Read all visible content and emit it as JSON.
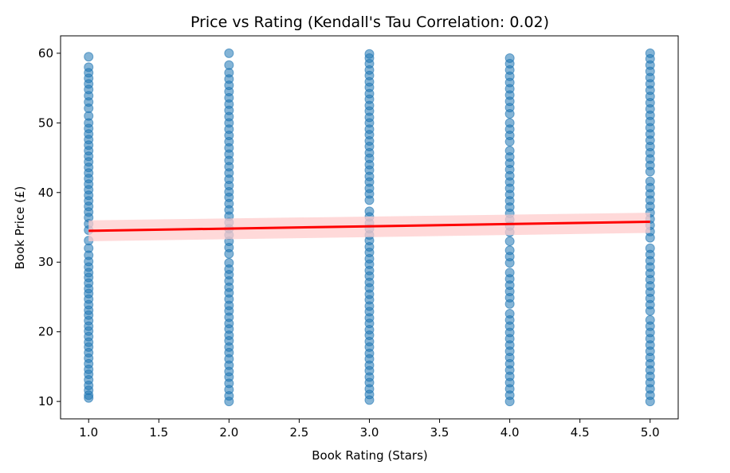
{
  "chart_data": {
    "type": "scatter",
    "title": "Price vs Rating (Kendall's Tau Correlation: 0.02)",
    "xlabel": "Book Rating (Stars)",
    "ylabel": "Book Price (£)",
    "xlim": [
      0.8,
      5.2
    ],
    "ylim": [
      7.5,
      62.5
    ],
    "xticks": [
      1.0,
      1.5,
      2.0,
      2.5,
      3.0,
      3.5,
      4.0,
      4.5,
      5.0
    ],
    "xtick_labels": [
      "1.0",
      "1.5",
      "2.0",
      "2.5",
      "3.0",
      "3.5",
      "4.0",
      "4.5",
      "5.0"
    ],
    "yticks": [
      10,
      20,
      30,
      40,
      50,
      60
    ],
    "ytick_labels": [
      "10",
      "20",
      "30",
      "40",
      "50",
      "60"
    ],
    "grid": false,
    "colors": {
      "points": "#1f77b4",
      "regression_line": "#ff0000",
      "confidence_band": "#ffcccc"
    },
    "regression": {
      "x": [
        1.0,
        5.0
      ],
      "y": [
        34.5,
        35.8
      ],
      "ci_upper": [
        36.0,
        37.1
      ],
      "ci_lower": [
        33.0,
        34.2
      ]
    },
    "series": [
      {
        "x": 1.0,
        "y": [
          10.5,
          10.9,
          11.6,
          12.3,
          13.1,
          13.9,
          14.6,
          15.4,
          16.2,
          17.0,
          17.8,
          18.5,
          19.3,
          20.1,
          20.8,
          21.6,
          22.4,
          23.1,
          23.9,
          24.7,
          25.5,
          26.2,
          27.0,
          27.8,
          28.5,
          29.3,
          30.1,
          31.0,
          32.0,
          33.1,
          34.6,
          35.5,
          36.4,
          37.2,
          38.0,
          38.8,
          39.6,
          40.4,
          41.2,
          42.0,
          42.8,
          43.6,
          44.4,
          45.2,
          46.0,
          46.8,
          47.6,
          48.4,
          49.2,
          50.0,
          51.0,
          52.1,
          53.0,
          53.9,
          54.8,
          55.6,
          56.4,
          57.2,
          58.0,
          59.5
        ]
      },
      {
        "x": 2.0,
        "y": [
          10.0,
          10.8,
          11.7,
          12.6,
          13.5,
          14.3,
          15.2,
          16.1,
          17.0,
          17.8,
          18.7,
          19.5,
          20.4,
          21.2,
          22.1,
          23.0,
          23.8,
          24.7,
          25.6,
          26.4,
          27.3,
          28.2,
          29.0,
          29.9,
          31.2,
          32.1,
          33.0,
          33.9,
          34.8,
          35.7,
          36.6,
          37.5,
          38.4,
          39.3,
          40.1,
          41.0,
          41.9,
          42.8,
          43.7,
          44.6,
          45.5,
          46.4,
          47.3,
          48.2,
          49.1,
          50.0,
          50.9,
          51.8,
          52.7,
          53.6,
          54.5,
          55.4,
          56.3,
          57.2,
          58.3,
          60.0
        ]
      },
      {
        "x": 3.0,
        "y": [
          10.2,
          11.0,
          11.8,
          12.7,
          13.5,
          14.4,
          15.2,
          16.1,
          16.9,
          17.8,
          18.6,
          19.5,
          20.3,
          21.2,
          22.0,
          22.9,
          23.7,
          24.6,
          25.4,
          26.3,
          27.1,
          28.0,
          28.8,
          29.7,
          30.5,
          31.4,
          32.2,
          33.1,
          33.9,
          34.8,
          35.6,
          36.5,
          37.3,
          38.9,
          39.8,
          40.6,
          41.5,
          42.3,
          43.2,
          44.0,
          44.9,
          45.7,
          46.6,
          47.4,
          48.3,
          49.1,
          50.0,
          50.8,
          51.7,
          52.5,
          53.4,
          54.2,
          55.1,
          55.9,
          56.8,
          57.6,
          58.5,
          59.3,
          59.9
        ]
      },
      {
        "x": 4.0,
        "y": [
          10.0,
          10.9,
          11.8,
          12.7,
          13.6,
          14.5,
          15.4,
          16.3,
          17.2,
          18.1,
          19.0,
          19.9,
          20.8,
          21.7,
          22.6,
          24.0,
          24.9,
          25.8,
          26.7,
          27.6,
          28.5,
          29.9,
          30.8,
          31.7,
          33.0,
          34.3,
          35.2,
          36.1,
          37.0,
          37.9,
          38.8,
          39.7,
          40.6,
          41.5,
          42.4,
          43.3,
          44.2,
          45.1,
          46.0,
          47.3,
          48.2,
          49.1,
          50.0,
          51.3,
          52.2,
          53.1,
          54.0,
          54.9,
          55.8,
          56.7,
          57.6,
          58.5,
          59.3
        ]
      },
      {
        "x": 5.0,
        "y": [
          10.0,
          10.9,
          11.8,
          12.7,
          13.6,
          14.5,
          15.4,
          16.3,
          17.2,
          18.1,
          19.0,
          19.9,
          20.8,
          21.7,
          23.0,
          23.9,
          24.8,
          25.7,
          26.6,
          27.5,
          28.4,
          29.3,
          30.2,
          31.1,
          32.0,
          33.5,
          34.4,
          35.3,
          36.2,
          37.1,
          38.0,
          38.9,
          39.8,
          40.7,
          41.6,
          43.0,
          43.9,
          44.8,
          45.7,
          46.6,
          47.5,
          48.4,
          49.3,
          50.2,
          51.1,
          52.0,
          52.9,
          53.8,
          54.7,
          55.6,
          56.5,
          57.4,
          58.3,
          59.2,
          60.0
        ]
      }
    ]
  }
}
